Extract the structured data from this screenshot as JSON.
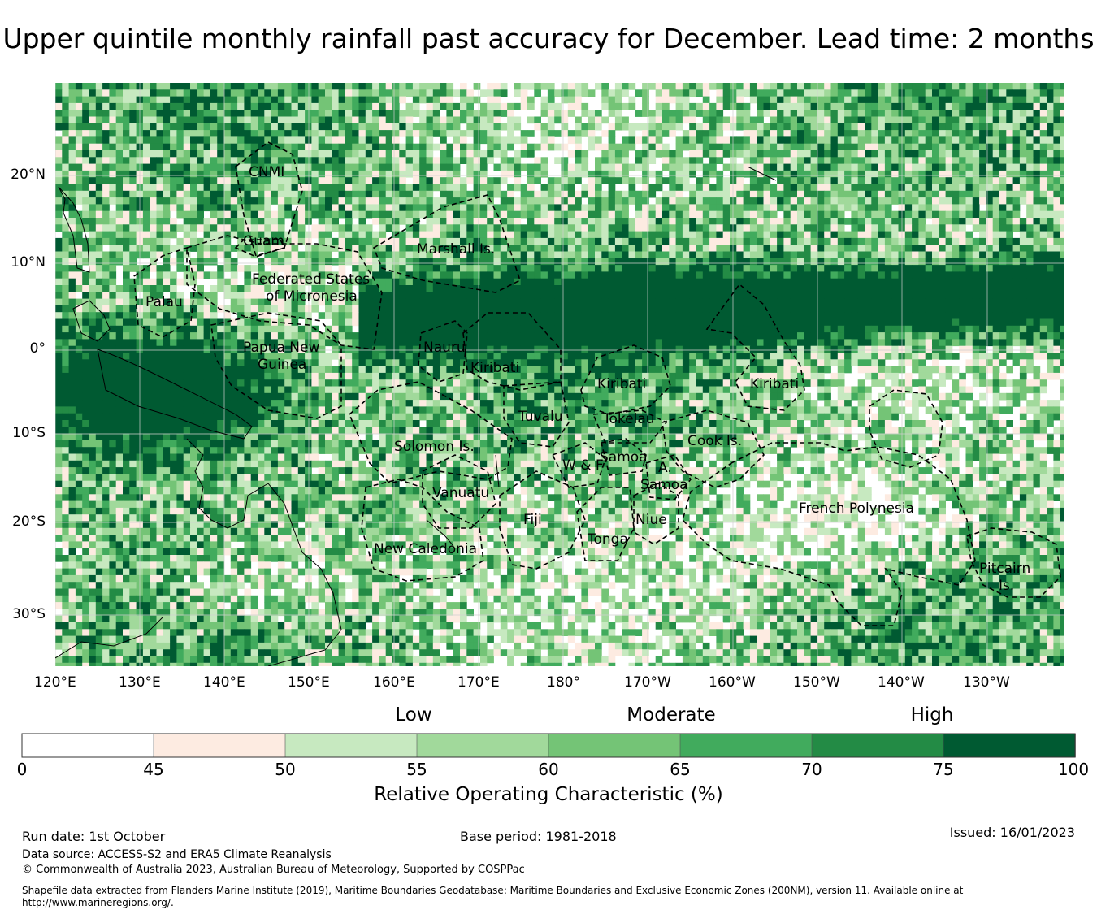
{
  "title": "Upper quintile monthly rainfall past accuracy for December. Lead time: 2 months",
  "map": {
    "lon_ticks": [
      "120°E",
      "130°E",
      "140°E",
      "150°E",
      "160°E",
      "170°E",
      "180°",
      "170°W",
      "160°W",
      "150°W",
      "140°W",
      "130°W"
    ],
    "lat_ticks": [
      "20°N",
      "10°N",
      "0°",
      "10°S",
      "20°S",
      "30°S"
    ],
    "regions": [
      {
        "name": "CNMI"
      },
      {
        "name": "Guam"
      },
      {
        "name": "Marshall Is."
      },
      {
        "name": "Federated States"
      },
      {
        "name": "of Micronesia"
      },
      {
        "name": "Palau"
      },
      {
        "name": "Papua New"
      },
      {
        "name": "Guinea"
      },
      {
        "name": "Nauru"
      },
      {
        "name": "Kiribati"
      },
      {
        "name": "Kiribati"
      },
      {
        "name": "Kiribati"
      },
      {
        "name": "Tuvalu"
      },
      {
        "name": "Tokelau"
      },
      {
        "name": "Cook Is."
      },
      {
        "name": "Solomon Is."
      },
      {
        "name": "Samoa"
      },
      {
        "name": "W & F"
      },
      {
        "name": "A."
      },
      {
        "name": "Samoa"
      },
      {
        "name": "Vanuatu"
      },
      {
        "name": "Fiji"
      },
      {
        "name": "Niue"
      },
      {
        "name": "Tonga"
      },
      {
        "name": "French Polynesia"
      },
      {
        "name": "New Caledonia"
      },
      {
        "name": "Pitcairn"
      },
      {
        "name": "Is."
      }
    ]
  },
  "colorbar": {
    "categories": [
      "Low",
      "Moderate",
      "High"
    ],
    "bins": [
      {
        "from": 0,
        "to": 45,
        "color": "#ffffff"
      },
      {
        "from": 45,
        "to": 50,
        "color": "#fdebe1"
      },
      {
        "from": 50,
        "to": 55,
        "color": "#c7e9c0"
      },
      {
        "from": 55,
        "to": 60,
        "color": "#a1d99b"
      },
      {
        "from": 60,
        "to": 65,
        "color": "#74c476"
      },
      {
        "from": 65,
        "to": 70,
        "color": "#41ab5d"
      },
      {
        "from": 70,
        "to": 75,
        "color": "#238b45"
      },
      {
        "from": 75,
        "to": 100,
        "color": "#005a32"
      }
    ],
    "tick_labels": [
      "0",
      "45",
      "50",
      "55",
      "60",
      "65",
      "70",
      "75",
      "100"
    ],
    "label": "Relative Operating Characteristic (%)"
  },
  "footer": {
    "run_date": "Run date: 1st October",
    "base_period": "Base period: 1981-2018",
    "issued": "Issued: 16/01/2023",
    "data_source": "Data source: ACCESS-S2 and ERA5 Climate Reanalysis",
    "copyright": "© Commonwealth of Australia 2023, Australian Bureau of Meteorology, Supported by COSPPac",
    "shapefile_line1": "Shapefile data extracted from Flanders Marine Institute (2019), Maritime Boundaries Geodatabase: Maritime Boundaries and Exclusive Economic Zones (200NM), version 11. Available online at",
    "shapefile_line2": "http://www.marineregions.org/."
  }
}
